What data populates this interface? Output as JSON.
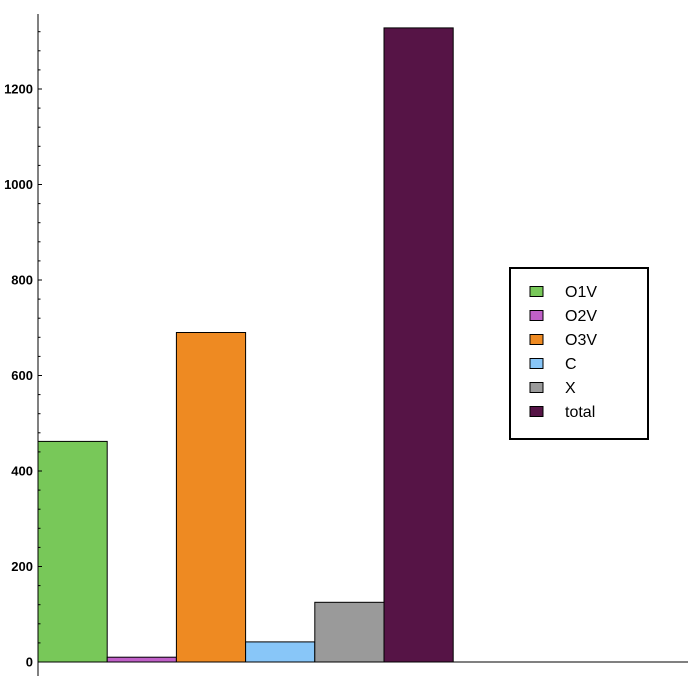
{
  "chart_data": {
    "type": "bar",
    "title": "",
    "xlabel": "",
    "ylabel": "",
    "ylim": [
      0,
      1350
    ],
    "yticks": [
      0,
      200,
      400,
      600,
      800,
      1000,
      1200
    ],
    "ytick_labels": [
      "0",
      "200",
      "400",
      "600",
      "800",
      "1000",
      "1200"
    ],
    "grid": false,
    "legend_position": "right",
    "series": [
      {
        "name": "O1V",
        "value": 462,
        "color": "#78c859"
      },
      {
        "name": "O2V",
        "value": 10,
        "color": "#c060c8"
      },
      {
        "name": "O3V",
        "value": 690,
        "color": "#ee8a22"
      },
      {
        "name": "C",
        "value": 42,
        "color": "#88c6f8"
      },
      {
        "name": "X",
        "value": 125,
        "color": "#9a9a9a"
      },
      {
        "name": "total",
        "value": 1328,
        "color": "#561446"
      }
    ]
  }
}
